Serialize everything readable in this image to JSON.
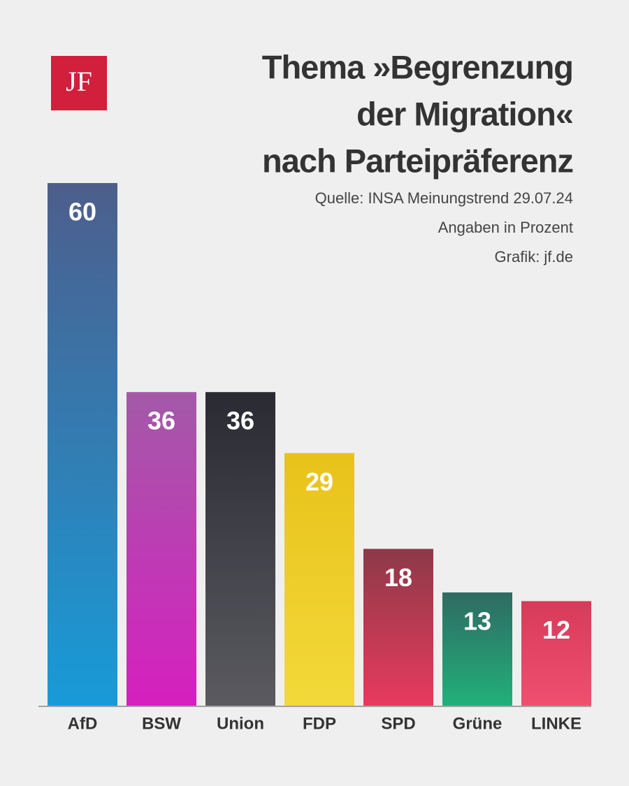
{
  "brand": {
    "logo": "JF"
  },
  "chart_data": {
    "type": "bar",
    "title": [
      "Thema »Begrenzung",
      "der Migration«",
      "nach Parteipräferenz"
    ],
    "notes": [
      "Quelle: INSA Meinungstrend 29.07.24",
      "Angaben in Prozent",
      "Grafik: jf.de"
    ],
    "categories": [
      "AfD",
      "BSW",
      "Union",
      "FDP",
      "SPD",
      "Grüne",
      "LINKE"
    ],
    "values": [
      60,
      36,
      36,
      29,
      18,
      13,
      12
    ],
    "colors": [
      [
        "#4d5e8c",
        "#189bd8"
      ],
      [
        "#a35aa8",
        "#d61fbf"
      ],
      [
        "#2a2a33",
        "#5a5a60"
      ],
      [
        "#e8c21a",
        "#f3d93a"
      ],
      [
        "#8c3a48",
        "#e83a5e"
      ],
      [
        "#2e6b62",
        "#22b07a"
      ],
      [
        "#d83a5a",
        "#f0506e"
      ]
    ]
  }
}
